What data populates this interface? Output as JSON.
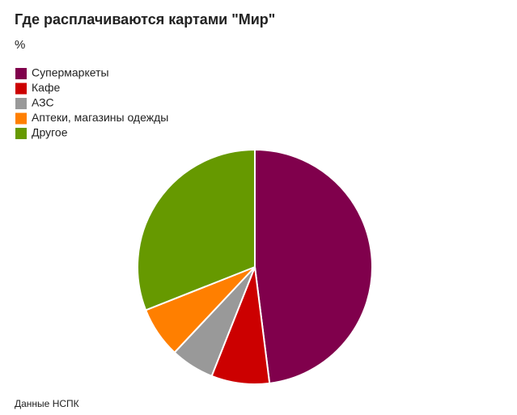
{
  "chart_data": {
    "type": "pie",
    "title": "Где расплачиваются картами \"Мир\"",
    "subtitle": "%",
    "categories": [
      "Супермаркеты",
      "Кафе",
      "АЗС",
      "Аптеки, магазины одежды",
      "Другое"
    ],
    "values": [
      48,
      8,
      6,
      7,
      31
    ],
    "colors": [
      "#80004c",
      "#cc0000",
      "#999999",
      "#ff7f00",
      "#669900"
    ],
    "source": "Данные НСПК"
  }
}
